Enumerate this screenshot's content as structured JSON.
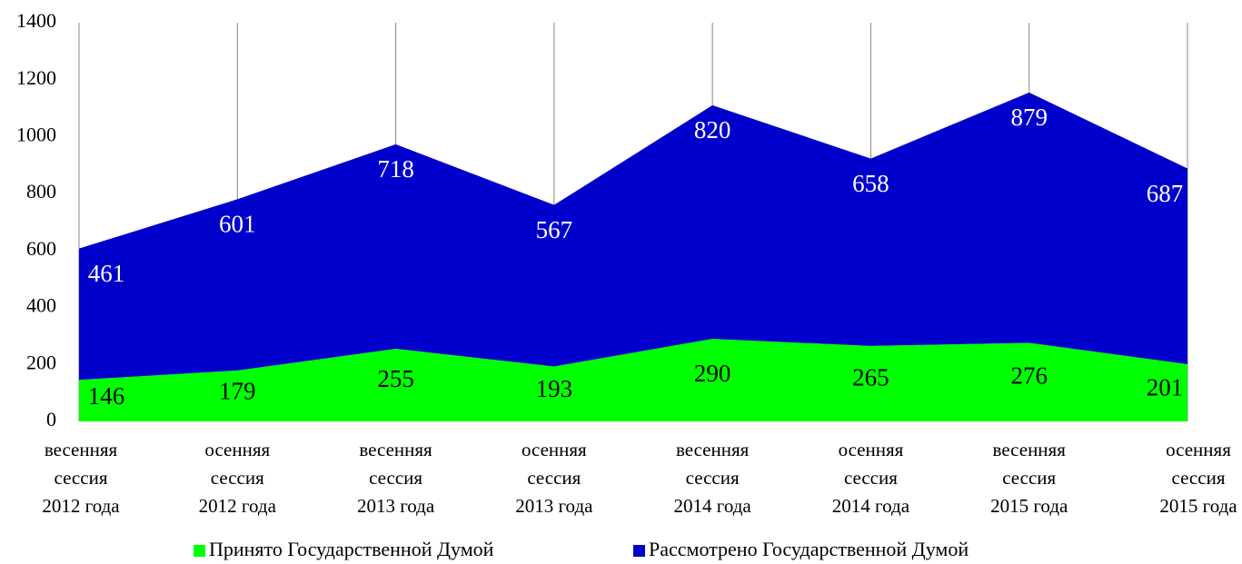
{
  "chart_data": {
    "type": "stacked_area",
    "categories": [
      "весенняя\nсессия\n2012 года",
      "осенняя\nсессия\n2012 года",
      "весенняя\nсессия\n2013 года",
      "осенняя\nсессия\n2013 года",
      "весенняя\nсессия\n2014 года",
      "осенняя\nсессия\n2014 года",
      "весенняя\nсессия\n2015 года",
      "осенняя\nсессия\n2015 года"
    ],
    "series": [
      {
        "name": "Принято Государственной Думой",
        "color": "#00ff00",
        "values": [
          146,
          179,
          255,
          193,
          290,
          265,
          276,
          201
        ]
      },
      {
        "name": "Рассмотрено Государственной Думой",
        "color": "#0000cc",
        "values": [
          461,
          601,
          718,
          567,
          820,
          658,
          879,
          687
        ]
      }
    ],
    "ylim": [
      0,
      1400
    ],
    "yticks": [
      0,
      200,
      400,
      600,
      800,
      1000,
      1200,
      1400
    ],
    "grid": true,
    "legend": "bottom"
  }
}
